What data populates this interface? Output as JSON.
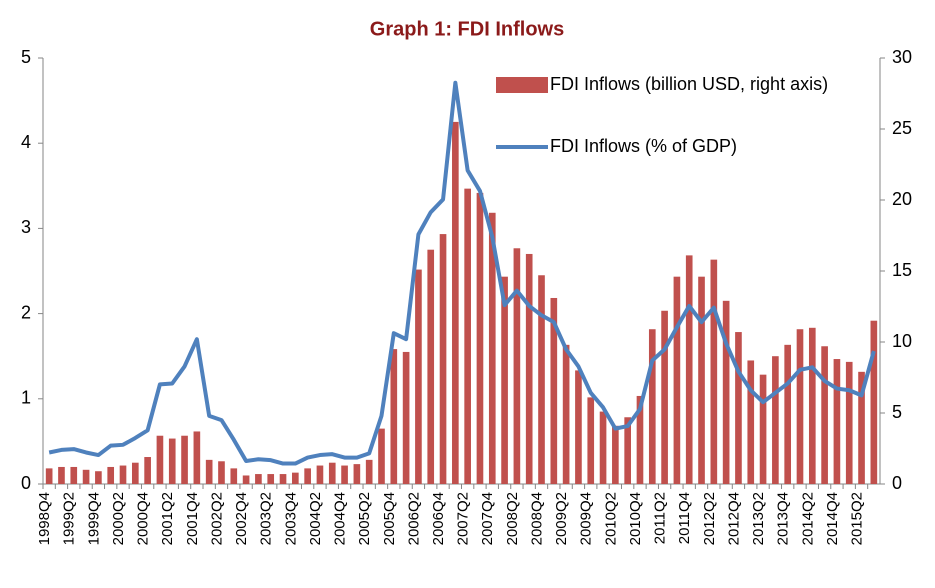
{
  "chart_data": {
    "type": "bar-line",
    "title": "Graph 1: FDI Inflows",
    "categories": [
      "1998Q4",
      null,
      "1999Q2",
      null,
      "1999Q4",
      null,
      "2000Q2",
      null,
      "2000Q4",
      null,
      "2001Q2",
      null,
      "2001Q4",
      null,
      "2002Q2",
      null,
      "2002Q4",
      null,
      "2003Q2",
      null,
      "2003Q4",
      null,
      "2004Q2",
      null,
      "2004Q4",
      null,
      "2005Q2",
      null,
      "2005Q4",
      null,
      "2006Q2",
      null,
      "2006Q4",
      null,
      "2007Q2",
      null,
      "2007Q4",
      null,
      "2008Q2",
      null,
      "2008Q4",
      null,
      "2009Q2",
      null,
      "2009Q4",
      null,
      "2010Q2",
      null,
      "2010Q4",
      null,
      "2011Q2",
      null,
      "2011Q4",
      null,
      "2012Q2",
      null,
      "2012Q4",
      null,
      "2013Q2",
      null,
      "2013Q4",
      null,
      "2014Q2",
      null,
      "2014Q4",
      null,
      "2015Q2",
      null
    ],
    "series": [
      {
        "name": "FDI Inflows (billion USD, right axis)",
        "type": "bar",
        "axis": "y2",
        "color": "#c0504d",
        "values": [
          1.1,
          1.2,
          1.2,
          1.0,
          0.9,
          1.2,
          1.3,
          1.5,
          1.9,
          3.4,
          3.2,
          3.4,
          3.7,
          1.7,
          1.6,
          1.1,
          0.6,
          0.7,
          0.7,
          0.7,
          0.8,
          1.1,
          1.3,
          1.5,
          1.3,
          1.4,
          1.7,
          3.9,
          9.5,
          9.3,
          15.1,
          16.5,
          17.6,
          25.5,
          20.8,
          20.5,
          19.1,
          14.6,
          16.6,
          16.2,
          14.7,
          13.1,
          9.8,
          8.0,
          6.1,
          5.1,
          4.1,
          4.7,
          6.2,
          10.9,
          12.2,
          14.6,
          16.1,
          14.6,
          15.8,
          12.9,
          10.7,
          8.7,
          7.7,
          9.0,
          9.8,
          10.9,
          11.0,
          9.7,
          8.8,
          8.6,
          7.9,
          11.5
        ]
      },
      {
        "name": "FDI Inflows (% of GDP)",
        "type": "line",
        "color": "#4f81bd",
        "values": [
          0.37,
          0.4,
          0.41,
          0.37,
          0.34,
          0.45,
          0.46,
          0.54,
          0.63,
          1.17,
          1.18,
          1.38,
          1.7,
          0.8,
          0.75,
          0.52,
          0.27,
          0.29,
          0.28,
          0.24,
          0.24,
          0.31,
          0.34,
          0.35,
          0.31,
          0.31,
          0.36,
          0.8,
          1.77,
          1.7,
          2.93,
          3.19,
          3.34,
          4.71,
          3.68,
          3.44,
          2.9,
          2.1,
          2.27,
          2.09,
          1.98,
          1.9,
          1.58,
          1.38,
          1.07,
          0.9,
          0.65,
          0.68,
          0.88,
          1.45,
          1.58,
          1.84,
          2.09,
          1.9,
          2.07,
          1.65,
          1.32,
          1.1,
          0.96,
          1.07,
          1.18,
          1.34,
          1.37,
          1.21,
          1.12,
          1.1,
          1.04,
          1.56
        ]
      }
    ],
    "ylim": [
      0,
      5
    ],
    "yticks": [
      0,
      1,
      2,
      3,
      4,
      5
    ],
    "y2lim": [
      0,
      30
    ],
    "y2ticks": [
      0,
      5,
      10,
      15,
      20,
      25,
      30
    ],
    "grid": false
  }
}
